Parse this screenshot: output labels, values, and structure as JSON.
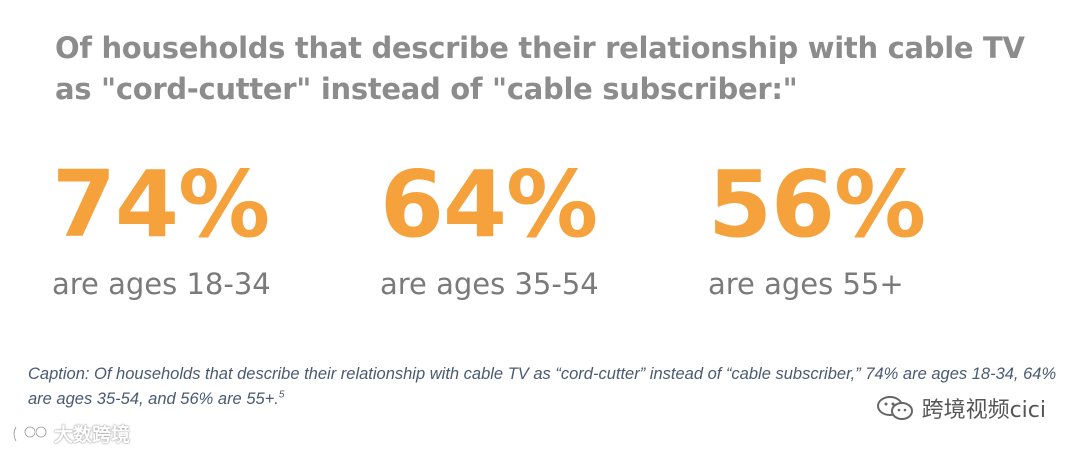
{
  "headline": {
    "line1": "Of households that describe their relationship with cable TV",
    "line2": "as \"cord-cutter\" instead of \"cable subscriber:\""
  },
  "stats": [
    {
      "value": "74%",
      "label": "are ages 18-34"
    },
    {
      "value": "64%",
      "label": "are ages 35-54"
    },
    {
      "value": "56%",
      "label": "are ages 55+"
    }
  ],
  "caption": {
    "text": "Caption: Of households that describe their relationship with cable TV as “cord-cutter” instead of “cable subscriber,” 74% are ages 18-34, 64% are ages 35-54, and 56% are 55+.",
    "footnote": "5"
  },
  "watermarks": {
    "right_text": "跨境视频cici",
    "right_icon": "wechat-icon",
    "left_text": "大数跨境",
    "left_icon": "logo-icon"
  },
  "colors": {
    "accent": "#f5a23c",
    "headline": "#8c8c8c",
    "label": "#7a7a7a",
    "caption": "#4a5a70"
  }
}
